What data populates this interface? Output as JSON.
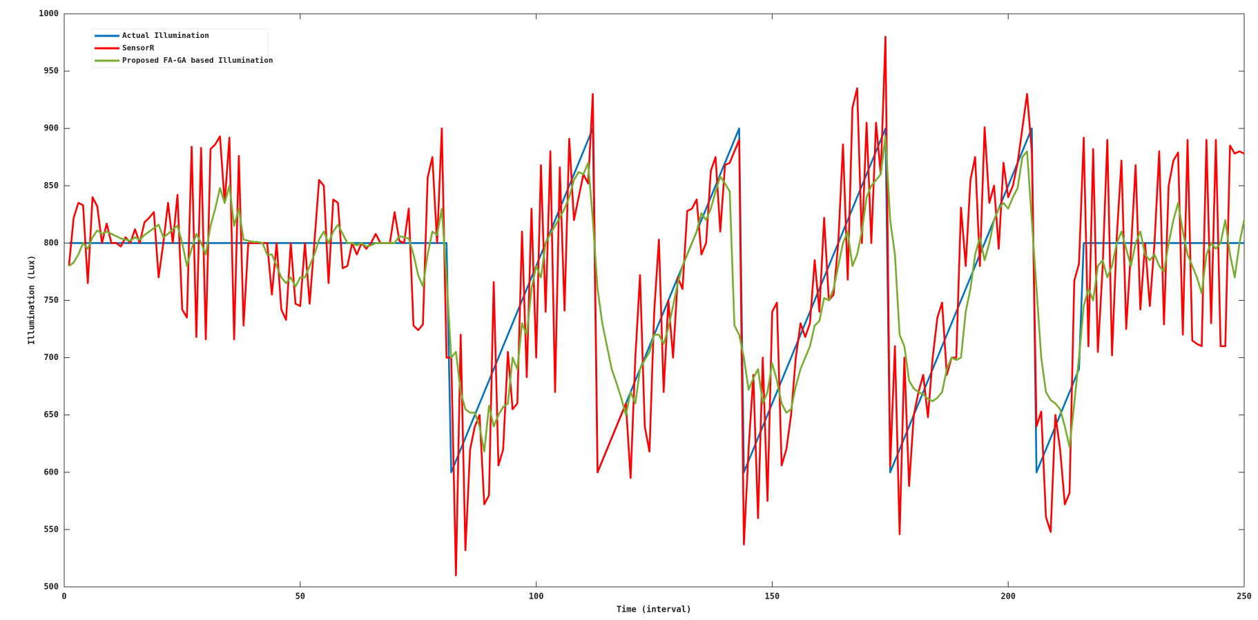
{
  "chart_data": {
    "type": "line",
    "xlabel": "Time (interval)",
    "ylabel": "Illumination (Lux)",
    "xlim": [
      0,
      250
    ],
    "ylim": [
      500,
      1000
    ],
    "xticks": [
      0,
      50,
      100,
      150,
      200,
      250
    ],
    "yticks": [
      500,
      550,
      600,
      650,
      700,
      750,
      800,
      850,
      900,
      950,
      1000
    ],
    "grid": false,
    "legend": "upper left",
    "x": [
      1,
      2,
      3,
      4,
      5,
      6,
      7,
      8,
      9,
      10,
      11,
      12,
      13,
      14,
      15,
      16,
      17,
      18,
      19,
      20,
      21,
      22,
      23,
      24,
      25,
      26,
      27,
      28,
      29,
      30,
      31,
      32,
      33,
      34,
      35,
      36,
      37,
      38,
      39,
      40,
      41,
      42,
      43,
      44,
      45,
      46,
      47,
      48,
      49,
      50,
      51,
      52,
      53,
      54,
      55,
      56,
      57,
      58,
      59,
      60,
      61,
      62,
      63,
      64,
      65,
      66,
      67,
      68,
      69,
      70,
      71,
      72,
      73,
      74,
      75,
      76,
      77,
      78,
      79,
      80,
      81,
      82,
      83,
      84,
      85,
      86,
      87,
      88,
      89,
      90,
      91,
      92,
      93,
      94,
      95,
      96,
      97,
      98,
      99,
      100,
      101,
      102,
      103,
      104,
      105,
      106,
      107,
      108,
      109,
      110,
      111,
      112,
      113,
      114,
      115,
      116,
      117,
      118,
      119,
      120,
      121,
      122,
      123,
      124,
      125,
      126,
      127,
      128,
      129,
      130,
      131,
      132,
      133,
      134,
      135,
      136,
      137,
      138,
      139,
      140,
      141,
      142,
      143,
      144,
      145,
      146,
      147,
      148,
      149,
      150,
      151,
      152,
      153,
      154,
      155,
      156,
      157,
      158,
      159,
      160,
      161,
      162,
      163,
      164,
      165,
      166,
      167,
      168,
      169,
      170,
      171,
      172,
      173,
      174,
      175,
      176,
      177,
      178,
      179,
      180,
      181,
      182,
      183,
      184,
      185,
      186,
      187,
      188,
      189,
      190,
      191,
      192,
      193,
      194,
      195,
      196,
      197,
      198,
      199,
      200,
      201,
      202,
      203,
      204,
      205,
      206,
      207,
      208,
      209,
      210,
      211,
      212,
      213,
      214,
      215,
      216,
      217,
      218,
      219,
      220,
      221,
      222,
      223,
      224,
      225,
      226,
      227,
      228,
      229,
      230,
      231,
      232,
      233,
      234,
      235,
      236,
      237,
      238,
      239,
      240,
      241,
      242,
      243,
      244,
      245,
      246,
      247,
      248,
      249,
      250
    ],
    "series": [
      {
        "name": "Actual Illumination",
        "color": "#0072bd",
        "x": [
          1,
          81,
          82,
          112,
          113,
          143,
          144,
          174,
          175,
          205,
          206,
          215,
          216,
          250
        ],
        "values": [
          800,
          800,
          600,
          900,
          600,
          900,
          600,
          900,
          600,
          900,
          600,
          690,
          800,
          800
        ]
      },
      {
        "name": "SensorR",
        "color": "#ff0000",
        "values": [
          780,
          822,
          835,
          833,
          765,
          840,
          832,
          800,
          817,
          800,
          800,
          797,
          805,
          800,
          812,
          800,
          818,
          822,
          827,
          770,
          800,
          835,
          800,
          842,
          742,
          735,
          884,
          718,
          883,
          716,
          882,
          886,
          893,
          835,
          892,
          716,
          876,
          728,
          800,
          800,
          800,
          800,
          800,
          755,
          800,
          742,
          733,
          800,
          747,
          745,
          800,
          747,
          800,
          855,
          850,
          765,
          838,
          835,
          778,
          780,
          800,
          790,
          800,
          795,
          800,
          808,
          800,
          800,
          800,
          827,
          802,
          800,
          830,
          728,
          724,
          729,
          857,
          875,
          800,
          900,
          700,
          700,
          510,
          720,
          532,
          620,
          640,
          650,
          572,
          580,
          766,
          606,
          620,
          705,
          655,
          660,
          810,
          683,
          830,
          700,
          868,
          740,
          880,
          670,
          866,
          741,
          891,
          820,
          840,
          860,
          852,
          930,
          600,
          610,
          620,
          630,
          640,
          650,
          660,
          595,
          700,
          772,
          640,
          618,
          740,
          803,
          670,
          750,
          700,
          770,
          760,
          828,
          830,
          838,
          790,
          800,
          863,
          875,
          810,
          868,
          870,
          880,
          890,
          537,
          620,
          685,
          560,
          700,
          575,
          740,
          748,
          606,
          620,
          650,
          700,
          730,
          718,
          730,
          785,
          740,
          822,
          750,
          755,
          800,
          886,
          768,
          918,
          935,
          800,
          905,
          800,
          905,
          860,
          980,
          605,
          710,
          546,
          700,
          588,
          650,
          670,
          685,
          648,
          700,
          735,
          748,
          685,
          700,
          700,
          831,
          780,
          855,
          875,
          780,
          901,
          835,
          850,
          795,
          870,
          840,
          850,
          870,
          900,
          930,
          880,
          640,
          653,
          561,
          548,
          650,
          620,
          572,
          582,
          767,
          782,
          892,
          710,
          882,
          705,
          778,
          890,
          702,
          805,
          872,
          725,
          793,
          868,
          742,
          800,
          745,
          800,
          880,
          729,
          850,
          872,
          879,
          720,
          890,
          715,
          712,
          710,
          890,
          730,
          890,
          710,
          710,
          885,
          878,
          880,
          878
        ]
      },
      {
        "name": "Proposed FA-GA based Illumination",
        "color": "#77ac30",
        "values": [
          780,
          783,
          790,
          800,
          795,
          805,
          811,
          808,
          810,
          808,
          806,
          804,
          803,
          802,
          805,
          803,
          807,
          810,
          813,
          816,
          805,
          808,
          812,
          815,
          800,
          780,
          795,
          808,
          800,
          790,
          815,
          830,
          848,
          835,
          850,
          815,
          830,
          803,
          802,
          801,
          801,
          800,
          790,
          790,
          780,
          770,
          765,
          770,
          762,
          770,
          770,
          780,
          790,
          803,
          810,
          800,
          810,
          816,
          808,
          800,
          800,
          798,
          800,
          797,
          798,
          800,
          800,
          800,
          800,
          800,
          806,
          805,
          804,
          790,
          772,
          762,
          790,
          810,
          807,
          830,
          770,
          700,
          705,
          670,
          655,
          652,
          652,
          640,
          618,
          658,
          640,
          650,
          657,
          660,
          700,
          690,
          730,
          720,
          760,
          780,
          770,
          800,
          808,
          815,
          822,
          830,
          840,
          855,
          862,
          860,
          870,
          820,
          760,
          730,
          710,
          690,
          678,
          665,
          650,
          670,
          660,
          690,
          698,
          705,
          720,
          720,
          712,
          726,
          745,
          765,
          780,
          790,
          800,
          810,
          826,
          820,
          830,
          845,
          858,
          852,
          845,
          728,
          720,
          700,
          672,
          682,
          690,
          660,
          670,
          695,
          680,
          660,
          652,
          655,
          675,
          690,
          700,
          710,
          728,
          732,
          752,
          750,
          760,
          780,
          800,
          810,
          780,
          790,
          810,
          840,
          850,
          855,
          860,
          893,
          820,
          790,
          720,
          710,
          680,
          673,
          670,
          668,
          664,
          662,
          665,
          670,
          690,
          700,
          698,
          700,
          740,
          760,
          790,
          805,
          785,
          800,
          820,
          830,
          835,
          830,
          840,
          848,
          875,
          880,
          820,
          760,
          700,
          670,
          663,
          660,
          655,
          640,
          622,
          660,
          700,
          745,
          760,
          750,
          780,
          785,
          770,
          780,
          800,
          810,
          795,
          780,
          800,
          810,
          790,
          785,
          790,
          780,
          775,
          800,
          820,
          835,
          810,
          790,
          780,
          770,
          756,
          790,
          800,
          795,
          800,
          820,
          790,
          770,
          800,
          820
        ]
      }
    ]
  }
}
